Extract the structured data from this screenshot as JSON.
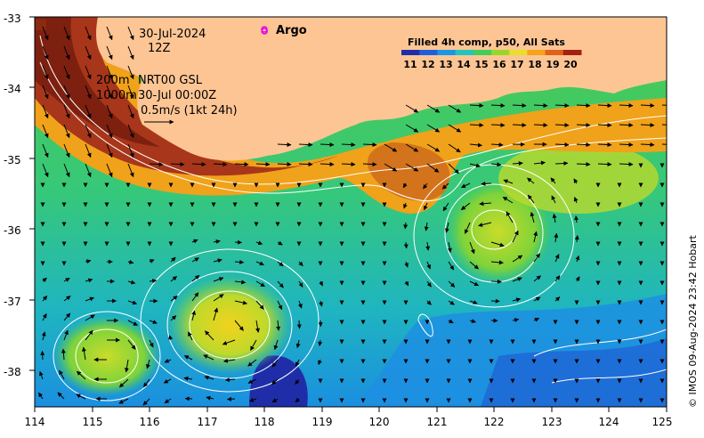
{
  "map": {
    "date_line": "30-Jul-2024",
    "time_line": "12Z",
    "depth_shallow": "200m",
    "depth_deep": "1000m",
    "altimetry_product": "NRT00 GSL",
    "altimetry_time": "30-Jul 00:00Z",
    "velocity_scale": "0.5m/s (1kt 24h)",
    "argo_label": "Argo",
    "colorbar_title": "Filled 4h comp, p50, All Sats",
    "colorbar_ticks": [
      "11",
      "12",
      "13",
      "14",
      "15",
      "16",
      "17",
      "18",
      "19",
      "20"
    ],
    "credit": "© IMOS 09-Aug-2024 23:42 Hobart",
    "x_ticks": [
      "114",
      "115",
      "116",
      "117",
      "118",
      "119",
      "120",
      "121",
      "122",
      "123",
      "124",
      "125"
    ],
    "y_ticks": [
      "-33",
      "-34",
      "-35",
      "-36",
      "-37",
      "-38"
    ],
    "x_range": [
      114,
      125
    ],
    "y_range": [
      -38.5,
      -33
    ],
    "argo_marker": {
      "lon": 118.0,
      "lat": -33.2
    },
    "colors": {
      "land": "#fdc594",
      "argo": "#e800e8",
      "colorbar": [
        "#1f2ea8",
        "#1f5fdc",
        "#1a96e6",
        "#22c4c0",
        "#3fcf5a",
        "#9ad62a",
        "#e6e02a",
        "#f5a31a",
        "#e2611a",
        "#a32210"
      ]
    }
  }
}
